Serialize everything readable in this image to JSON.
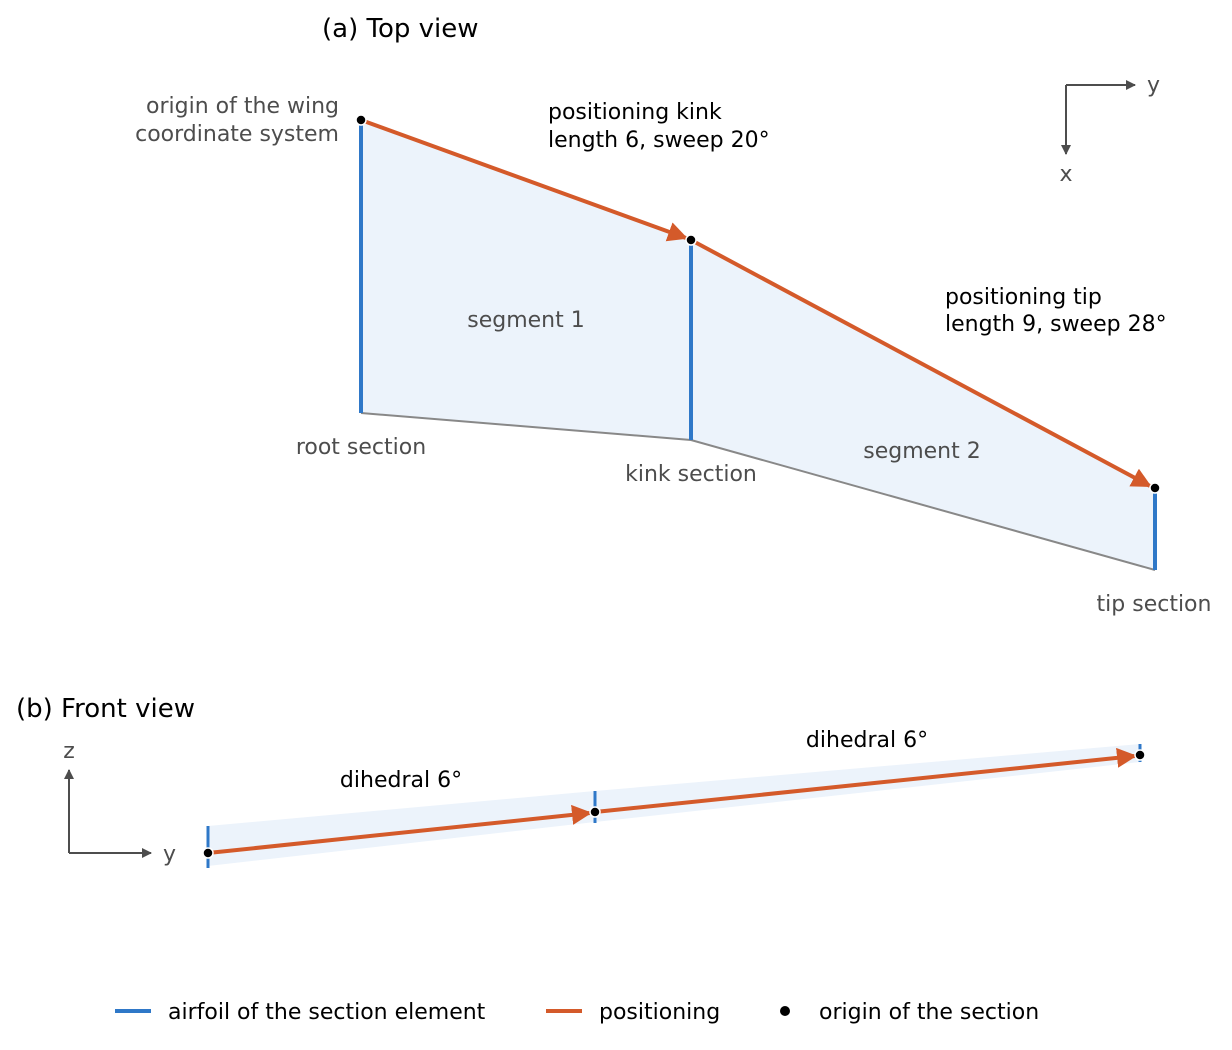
{
  "colors": {
    "airfoil": "#2f78c8",
    "positioning": "#d45a2a",
    "origin": "#000000",
    "planform_fill": "#ecf3fb",
    "trailing_edge": "#888888",
    "axis": "#4d4d4d",
    "label_gray": "#4d4d4d"
  },
  "top_view": {
    "title": "(a) Top view",
    "origin_label": [
      "origin of the wing",
      "coordinate system"
    ],
    "kink_positioning_label": [
      "positioning kink",
      "length 6, sweep 20°"
    ],
    "tip_positioning_label": [
      "positioning tip",
      "length 9, sweep 28°"
    ],
    "segment1_label": "segment 1",
    "segment2_label": "segment 2",
    "root_section_label": "root section",
    "kink_section_label": "kink section",
    "tip_section_label": "tip section",
    "axes": {
      "y_label": "y",
      "x_label": "x"
    }
  },
  "front_view": {
    "title": "(b) Front view",
    "dihedral1_label": "dihedral 6°",
    "dihedral2_label": "dihedral 6°",
    "axes": {
      "z_label": "z",
      "y_label": "y"
    }
  },
  "legend": {
    "items": [
      {
        "icon": "line",
        "color_key": "airfoil",
        "label": "airfoil of the section element"
      },
      {
        "icon": "line",
        "color_key": "positioning",
        "label": "positioning"
      },
      {
        "icon": "dot",
        "color_key": "origin",
        "label": "origin of the section"
      }
    ]
  }
}
